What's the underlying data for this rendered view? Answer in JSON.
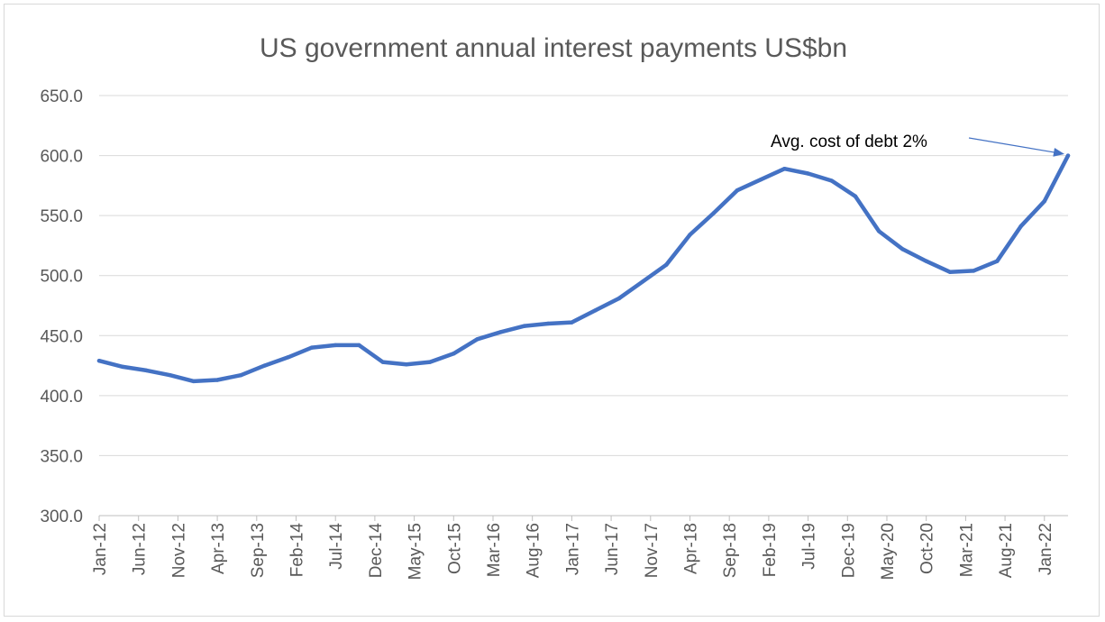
{
  "chart_data": {
    "type": "line",
    "title": "US government annual interest payments US$bn",
    "xlabel": "",
    "ylabel": "",
    "ylim": [
      300,
      650
    ],
    "ytick_values": [
      300,
      350,
      400,
      450,
      500,
      550,
      600,
      650
    ],
    "ytick_labels": [
      "300.0",
      "350.0",
      "400.0",
      "450.0",
      "500.0",
      "550.0",
      "600.0",
      "650.0"
    ],
    "xtick_labels": [
      "Jan-12",
      "Jun-12",
      "Nov-12",
      "Apr-13",
      "Sep-13",
      "Feb-14",
      "Jul-14",
      "Dec-14",
      "May-15",
      "Oct-15",
      "Mar-16",
      "Aug-16",
      "Jan-17",
      "Jun-17",
      "Nov-17",
      "Apr-18",
      "Sep-18",
      "Feb-19",
      "Jul-19",
      "Dec-19",
      "May-20",
      "Oct-20",
      "Mar-21",
      "Aug-21",
      "Jan-22"
    ],
    "grid": "horizontal",
    "legend": "none",
    "line_color": "#4472c4",
    "series": [
      {
        "x": [
          "Jan-12",
          "Apr-12",
          "Jul-12",
          "Oct-12",
          "Jan-13",
          "Apr-13",
          "Jul-13",
          "Oct-13",
          "Jan-14",
          "Apr-14",
          "Jul-14",
          "Oct-14",
          "Jan-15",
          "Apr-15",
          "Jul-15",
          "Oct-15",
          "Jan-16",
          "Apr-16",
          "Jul-16",
          "Oct-16",
          "Jan-17",
          "Apr-17",
          "Jul-17",
          "Oct-17",
          "Jan-18",
          "Apr-18",
          "Jul-18",
          "Oct-18",
          "Jan-19",
          "Apr-19",
          "Jul-19",
          "Oct-19",
          "Jan-20",
          "Apr-20",
          "Jul-20",
          "Oct-20",
          "Jan-21",
          "Apr-21",
          "Jul-21",
          "Oct-21",
          "Jan-22",
          "Apr-22"
        ],
        "values": [
          429,
          424,
          421,
          417,
          412,
          413,
          417,
          425,
          432,
          440,
          442,
          442,
          428,
          426,
          428,
          435,
          447,
          453,
          458,
          460,
          461,
          471,
          481,
          495,
          509,
          534,
          552,
          571,
          580,
          589,
          585,
          579,
          566,
          537,
          522,
          512,
          503,
          504,
          512,
          541,
          562,
          600
        ]
      }
    ],
    "annotation": {
      "text": "Avg. cost of debt 2%",
      "points_to": {
        "x": "Apr-22",
        "y": 600
      }
    }
  }
}
